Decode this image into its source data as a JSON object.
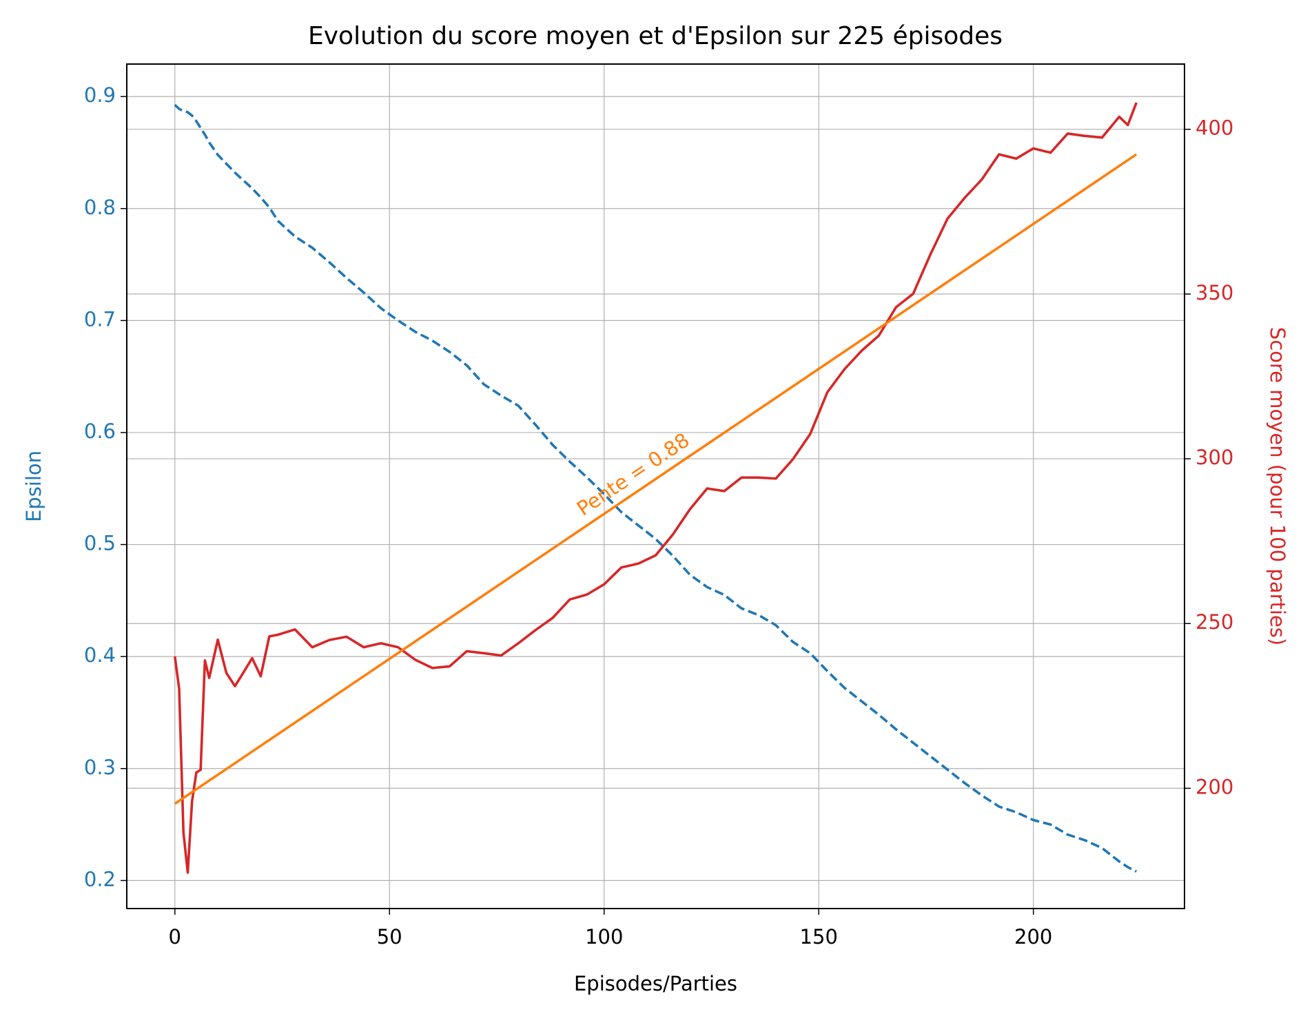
{
  "chart_data": {
    "type": "line",
    "title": "Evolution du score moyen et d'Epsilon sur 225 épisodes",
    "xlabel": "Episodes/Parties",
    "ylabel": "Epsilon",
    "y2label": "Score moyen (pour 100 parties)",
    "ylabel_color": "#1f77b4",
    "y2label_color": "#d62728",
    "x": [
      0,
      1,
      2,
      3,
      4,
      5,
      6,
      7,
      8,
      10,
      12,
      14,
      16,
      18,
      20,
      22,
      24,
      28,
      32,
      36,
      40,
      44,
      48,
      52,
      56,
      60,
      64,
      68,
      72,
      76,
      80,
      84,
      88,
      92,
      96,
      100,
      104,
      108,
      112,
      116,
      120,
      124,
      128,
      132,
      136,
      140,
      144,
      148,
      152,
      156,
      160,
      164,
      168,
      172,
      176,
      180,
      184,
      188,
      192,
      196,
      200,
      204,
      208,
      212,
      216,
      220,
      222,
      224
    ],
    "series": [
      {
        "name": "Epsilon",
        "color": "#1f77b4",
        "dashed": true,
        "axis": "y",
        "values": [
          0.8925,
          0.889,
          0.887,
          0.886,
          0.883,
          0.878,
          0.872,
          0.866,
          0.859,
          0.848,
          0.84,
          0.832,
          0.825,
          0.818,
          0.81,
          0.801,
          0.789,
          0.775,
          0.765,
          0.752,
          0.738,
          0.725,
          0.711,
          0.7,
          0.69,
          0.682,
          0.672,
          0.66,
          0.643,
          0.633,
          0.624,
          0.607,
          0.589,
          0.574,
          0.56,
          0.545,
          0.529,
          0.517,
          0.505,
          0.49,
          0.473,
          0.462,
          0.455,
          0.443,
          0.437,
          0.428,
          0.413,
          0.403,
          0.387,
          0.372,
          0.36,
          0.348,
          0.335,
          0.323,
          0.311,
          0.299,
          0.287,
          0.276,
          0.266,
          0.261,
          0.254,
          0.25,
          0.241,
          0.236,
          0.229,
          0.217,
          0.212,
          0.208
        ]
      },
      {
        "name": "Score moyen",
        "color": "#d62728",
        "dashed": false,
        "axis": "y2",
        "values": [
          240.0,
          230.2,
          186.6,
          174.4,
          196.0,
          204.8,
          205.6,
          238.8,
          233.5,
          245.1,
          235.0,
          231.0,
          235.2,
          239.5,
          234.0,
          246.1,
          246.6,
          248.2,
          242.8,
          245.0,
          246.0,
          242.8,
          244.0,
          242.8,
          239.0,
          236.5,
          237.0,
          241.6,
          241.0,
          240.3,
          244.0,
          248.0,
          251.7,
          257.3,
          258.8,
          261.9,
          267.0,
          268.2,
          270.7,
          277.0,
          284.7,
          291.0,
          290.2,
          294.3,
          294.3,
          294.0,
          299.9,
          307.5,
          320.2,
          327.2,
          332.8,
          337.4,
          346.0,
          350.1,
          362.0,
          372.9,
          379.2,
          384.8,
          392.4,
          391.1,
          394.2,
          392.9,
          398.7,
          398.0,
          397.5,
          403.8,
          401.3,
          408.1
        ]
      }
    ],
    "trend": {
      "color": "#ff7f0e",
      "axis": "y2",
      "x": [
        0,
        224
      ],
      "values": [
        195.3,
        392.4
      ],
      "label": "Pente = 0.88"
    },
    "xlim": [
      -11.2,
      235.2
    ],
    "xticks": [
      0,
      50,
      100,
      150,
      200
    ],
    "ylim": [
      0.175,
      0.929
    ],
    "yticks": [
      0.2,
      0.3,
      0.4,
      0.5,
      0.6,
      0.7,
      0.8,
      0.9
    ],
    "y2lim": [
      163.5,
      419.8
    ],
    "y2ticks": [
      200,
      250,
      300,
      350,
      400
    ],
    "grid": true
  }
}
